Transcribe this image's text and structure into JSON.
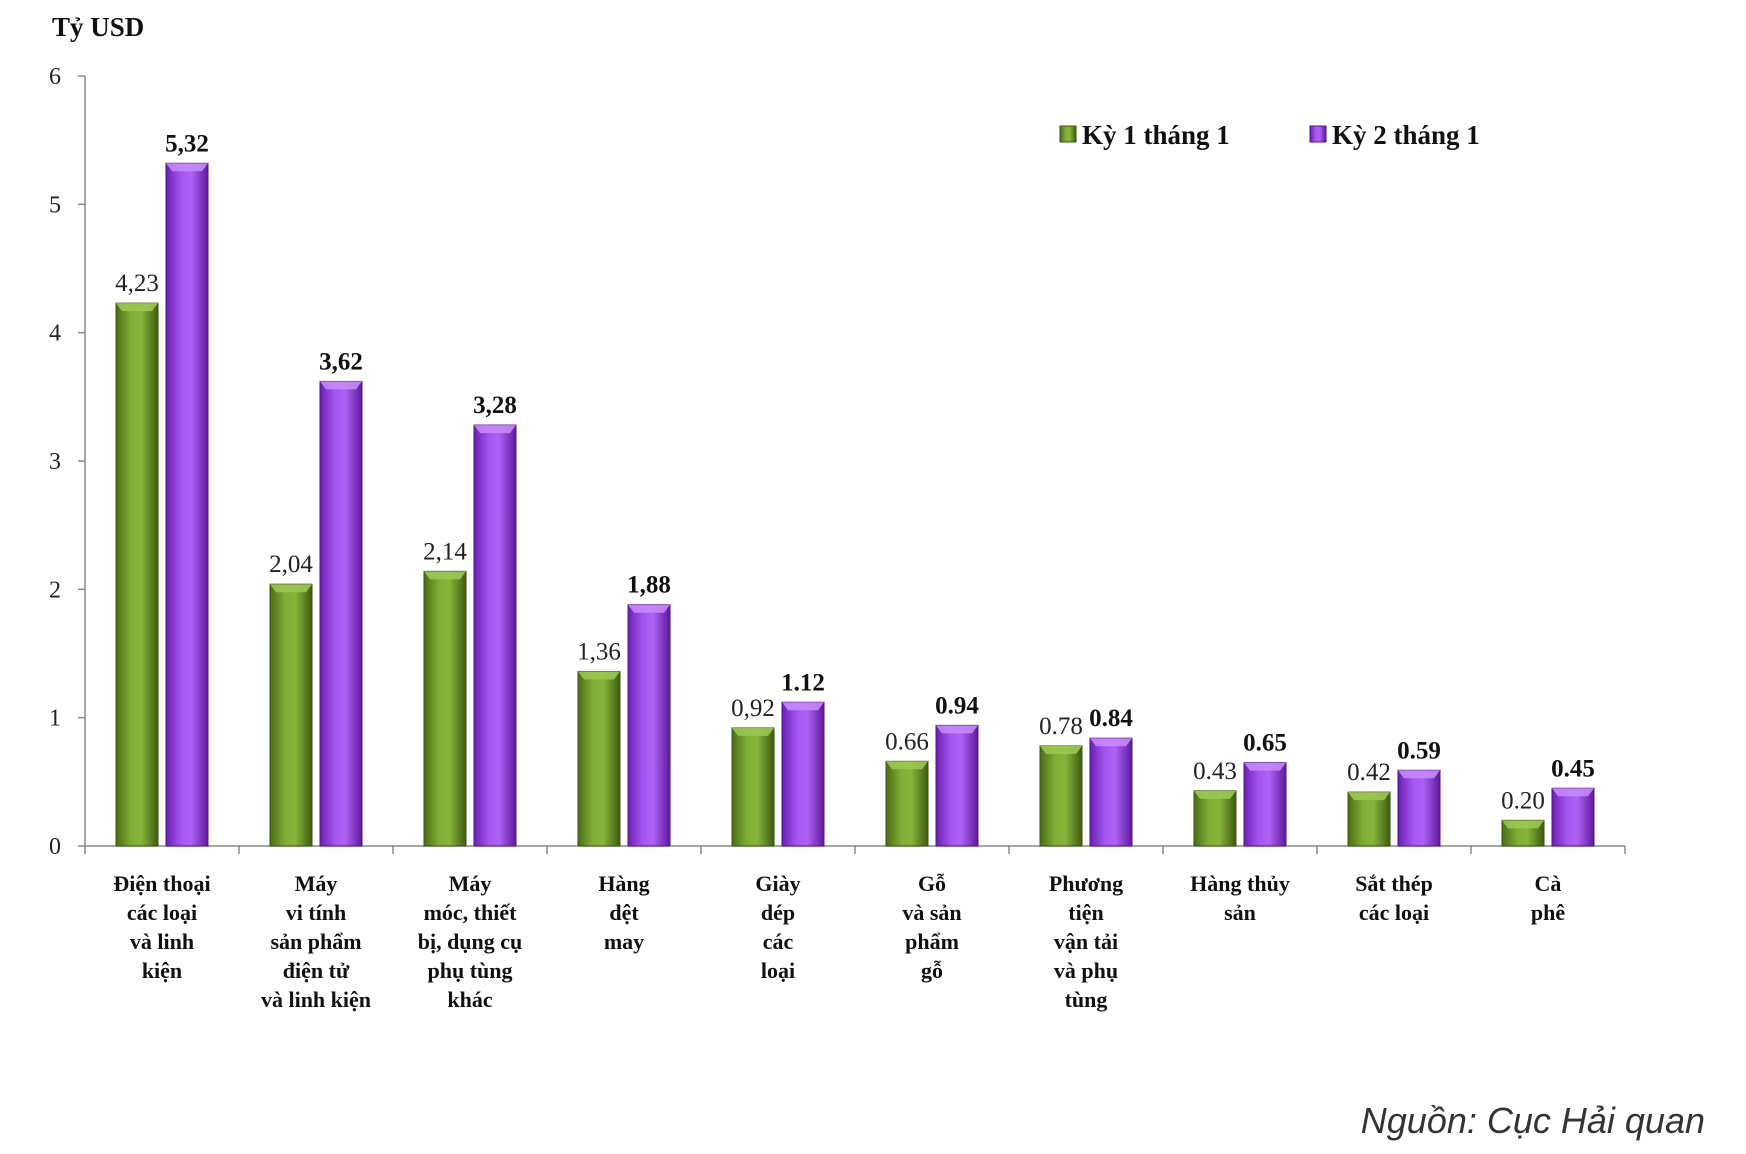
{
  "chart_data": {
    "type": "bar",
    "ylabel": "Tỷ USD",
    "ylim": [
      0,
      6
    ],
    "yticks": [
      "0",
      "1",
      "2",
      "3",
      "4",
      "5",
      "6"
    ],
    "categories": [
      [
        "Điện thoại",
        "các loại",
        "và linh",
        "kiện"
      ],
      [
        "Máy",
        "vi tính",
        "sản phẩm",
        "điện tử",
        "và linh kiện"
      ],
      [
        "Máy",
        "móc, thiết",
        "bị, dụng cụ",
        "phụ tùng",
        "khác"
      ],
      [
        "Hàng",
        "dệt",
        "may"
      ],
      [
        "Giày",
        "dép",
        "các",
        "loại"
      ],
      [
        "Gỗ",
        "và sản",
        "phẩm",
        "gỗ"
      ],
      [
        "Phương",
        "tiện",
        "vận tải",
        "và phụ",
        "tùng"
      ],
      [
        "Hàng thủy",
        "sản"
      ],
      [
        "Sắt thép",
        "các loại"
      ],
      [
        "Cà",
        "phê"
      ]
    ],
    "series": [
      {
        "name": "Kỳ 1 tháng 1",
        "color": "#6f9a2c",
        "values": [
          4.23,
          2.04,
          2.14,
          1.36,
          0.92,
          0.66,
          0.78,
          0.43,
          0.42,
          0.2
        ],
        "labels": [
          "4,23",
          "2,04",
          "2,14",
          "1,36",
          "0,92",
          "0.66",
          "0.78",
          "0.43",
          "0.42",
          "0.20"
        ]
      },
      {
        "name": "Kỳ 2 tháng 1",
        "color": "#9b3ee8",
        "values": [
          5.32,
          3.62,
          3.28,
          1.88,
          1.12,
          0.94,
          0.84,
          0.65,
          0.59,
          0.45
        ],
        "labels": [
          "5,32",
          "3,62",
          "3,28",
          "1,88",
          "1.12",
          "0.94",
          "0.84",
          "0.65",
          "0.59",
          "0.45"
        ]
      }
    ],
    "legend_position": "top-right",
    "grid": false
  },
  "source": "Nguồn: Cục Hải quan"
}
